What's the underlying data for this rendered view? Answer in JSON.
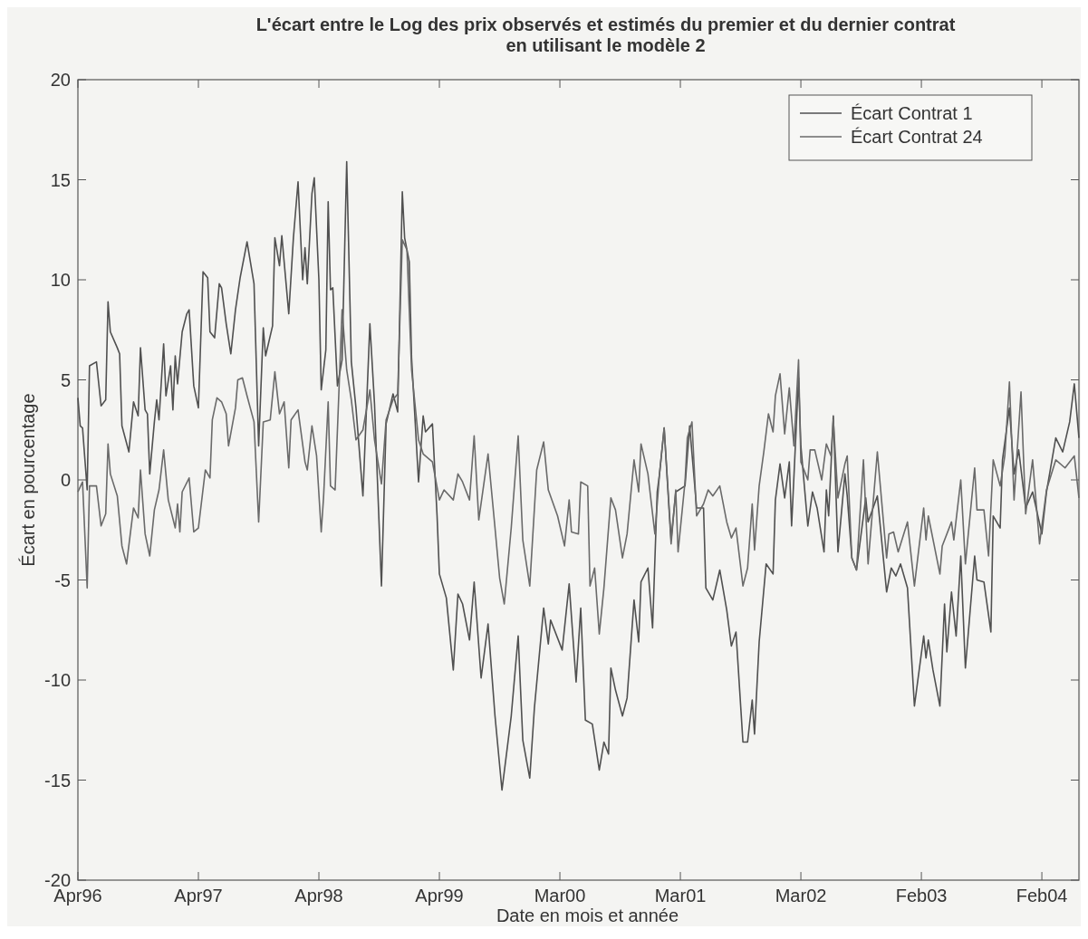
{
  "chart_data": {
    "type": "line",
    "title": "L'écart entre le Log des prix observés et estimés du premier et du dernier contrat\nen utilisant le modèle 2",
    "xlabel": "Date en mois et année",
    "ylabel": "Écart en pourcentage",
    "categories": [
      "Apr96",
      null,
      null,
      null,
      null,
      null,
      null,
      null,
      null,
      null,
      null,
      null,
      null,
      null,
      null,
      null,
      null,
      null,
      null,
      null,
      null,
      null,
      null,
      null,
      null,
      null,
      null,
      null,
      null,
      null,
      null,
      null,
      null,
      null,
      null,
      null,
      null,
      null,
      null,
      null,
      null,
      null,
      null,
      null,
      null,
      null,
      null,
      null,
      null,
      null,
      null,
      null,
      "Apr97",
      null,
      null,
      null,
      null,
      null,
      null,
      null,
      null,
      null,
      null,
      null,
      null,
      null,
      null,
      null,
      null,
      null,
      null,
      null,
      null,
      null,
      null,
      null,
      null,
      null,
      null,
      null,
      null,
      null,
      null,
      null,
      null,
      null,
      null,
      null,
      null,
      null,
      null,
      null,
      null,
      null,
      null,
      null,
      null,
      null,
      null,
      null,
      null,
      null,
      null,
      null,
      "Apr98",
      null,
      null,
      null,
      null,
      null,
      null,
      null,
      null,
      null,
      null,
      null,
      null,
      null,
      null,
      null,
      null,
      null,
      null,
      null,
      null,
      null,
      null,
      null,
      null,
      null,
      null,
      null,
      null,
      null,
      null,
      null,
      null,
      null,
      null,
      null,
      null,
      null,
      null,
      null,
      null,
      null,
      null,
      null,
      null,
      null,
      null,
      null,
      null,
      null,
      null,
      null,
      "Apr99",
      null,
      null,
      null,
      null,
      null,
      null,
      null,
      null,
      null,
      null,
      null,
      null,
      null,
      null,
      null,
      null,
      null,
      null,
      null,
      null,
      null,
      null,
      null,
      null,
      null,
      null,
      null,
      null,
      null,
      null,
      null,
      null,
      null,
      null,
      null,
      null,
      null,
      null,
      null,
      null,
      null,
      null,
      null,
      null,
      null,
      null,
      null,
      null,
      null,
      null,
      null,
      "Mar00",
      null,
      null,
      null,
      null,
      null,
      null,
      null,
      null,
      null,
      null,
      null,
      null,
      null,
      null,
      null,
      null,
      null,
      null,
      null,
      null,
      null,
      null,
      null,
      null,
      null,
      null,
      null,
      null,
      null,
      null,
      null,
      null,
      null,
      null,
      null,
      null,
      null,
      null,
      null,
      null,
      null,
      null,
      null,
      null,
      null,
      null,
      null,
      null,
      null,
      null,
      null,
      "Mar01",
      null,
      null,
      null,
      null,
      null,
      null,
      null,
      null,
      null,
      null,
      null,
      null,
      null,
      null,
      null,
      null,
      null,
      null,
      null,
      null,
      null,
      null,
      null,
      null,
      null,
      null,
      null,
      null,
      null,
      null,
      null,
      null,
      null,
      null,
      null,
      null,
      null,
      null,
      null,
      null,
      null,
      null,
      null,
      null,
      null,
      null,
      null,
      null,
      null,
      null,
      null,
      "Mar02",
      null,
      null,
      null,
      null,
      null,
      null,
      null,
      null,
      null,
      null,
      null,
      null,
      null,
      null,
      null,
      null,
      null,
      null,
      null,
      null,
      null,
      null,
      null,
      null,
      null,
      null,
      null,
      null,
      null,
      null,
      null,
      null,
      null,
      null,
      null,
      null,
      null,
      null,
      null,
      null,
      null,
      null,
      null,
      null,
      null,
      null,
      null,
      null,
      null,
      null,
      null,
      "Feb03",
      null,
      null,
      null,
      null,
      null,
      null,
      null,
      null,
      null,
      null,
      null,
      null,
      null,
      null,
      null,
      null,
      null,
      null,
      null,
      null,
      null,
      null,
      null,
      null,
      null,
      null,
      null,
      null,
      null,
      null,
      null,
      null,
      null,
      null,
      null,
      null,
      null,
      null,
      null,
      null,
      null,
      null,
      null,
      null,
      null,
      null,
      null,
      null,
      null,
      null,
      null,
      "Feb04",
      null,
      null,
      null,
      null,
      null,
      null,
      null,
      null,
      null,
      null,
      null,
      null,
      null,
      null,
      null,
      null
    ],
    "ylim": [
      -20,
      20
    ],
    "yticks": [
      -20,
      -15,
      -10,
      -5,
      0,
      5,
      10,
      15,
      20
    ],
    "grid": false,
    "legend": "top right",
    "marker": "none",
    "line_style": "solid",
    "series": [
      {
        "name": "Écart Contrat 1",
        "color": "#505050",
        "values": [
          4.1,
          2.7,
          2.6,
          null,
          -0.5,
          5.7,
          null,
          null,
          5.9,
          null,
          3.7,
          null,
          4.0,
          8.9,
          7.4,
          null,
          null,
          6.6,
          6.3,
          2.7,
          null,
          null,
          1.4,
          null,
          3.9,
          null,
          3.2,
          6.6,
          null,
          3.5,
          3.3,
          0.3,
          null,
          2.9,
          4.0,
          3.0,
          null,
          6.8,
          4.2,
          null,
          5.7,
          3.5,
          6.2,
          4.8,
          null,
          7.4,
          null,
          8.3,
          8.5,
          null,
          4.7,
          null,
          3.6,
          null,
          10.4,
          null,
          10.1,
          7.4,
          null,
          7.1,
          null,
          9.8,
          9.6,
          null,
          7.8,
          null,
          6.3,
          null,
          8.5,
          null,
          10.1,
          null,
          null,
          11.9,
          null,
          null,
          9.8,
          null,
          1.7,
          null,
          7.6,
          6.2,
          null,
          null,
          7.7,
          12.1,
          null,
          10.7,
          12.2,
          null,
          null,
          8.3,
          null,
          12.1,
          null,
          14.9,
          null,
          10.0,
          11.6,
          9.8,
          null,
          14.3,
          15.1,
          null,
          10.0,
          4.5,
          null,
          6.5,
          13.9,
          9.5,
          9.6,
          null,
          4.7,
          null,
          6.0,
          null,
          15.9,
          null,
          5.9,
          null,
          3.6,
          null,
          null,
          -0.8,
          null,
          null,
          7.8,
          null,
          3.8,
          null,
          null,
          -5.3,
          null,
          2.8,
          null,
          null,
          4.3,
          null,
          3.4,
          null,
          14.4,
          12.1,
          null,
          10.9,
          6.1,
          null,
          null,
          -0.1,
          null,
          3.2,
          2.4,
          null,
          null,
          2.8,
          null,
          -1.8,
          -4.7,
          null,
          null,
          -5.9,
          null,
          null,
          -9.5,
          null,
          -5.7,
          null,
          -6.2,
          null,
          null,
          -8.0,
          null,
          -5.1,
          null,
          null,
          -9.9,
          null,
          null,
          -7.2,
          null,
          null,
          -11.8,
          null,
          null,
          -15.5,
          null,
          null,
          null,
          -11.8,
          null,
          null,
          -7.8,
          null,
          -13.0,
          null,
          null,
          -14.9,
          null,
          -11.4,
          null,
          null,
          null,
          -6.4,
          null,
          -8.2,
          -7.0,
          null,
          null,
          null,
          null,
          -8.5,
          null,
          null,
          -5.2,
          null,
          null,
          -10.1,
          null,
          -6.4,
          null,
          -12.0,
          null,
          null,
          -12.2,
          null,
          null,
          -14.5,
          null,
          -13.1,
          null,
          -13.7,
          -9.4,
          null,
          -10.5,
          null,
          null,
          -11.8,
          null,
          -10.9,
          null,
          null,
          -6.0,
          null,
          -8.1,
          -5.1,
          null,
          null,
          -4.4,
          null,
          -7.4,
          null,
          -0.6,
          0.3,
          null,
          2.6,
          null,
          null,
          -3.0,
          null,
          -0.6,
          null,
          null,
          null,
          -0.3,
          null,
          2.7,
          null,
          null,
          -1.4,
          null,
          null,
          -1.4,
          -5.4,
          null,
          null,
          -6.0,
          null,
          null,
          -4.5,
          null,
          null,
          -6.5,
          null,
          -8.3,
          null,
          -7.6,
          null,
          null,
          -13.1,
          null,
          -13.1,
          null,
          -11.0,
          -12.7,
          null,
          -8.1,
          null,
          null,
          -4.2,
          null,
          null,
          -4.7,
          -1.0,
          null,
          0.8,
          null,
          -0.9,
          null,
          0.9,
          -2.3,
          null,
          null,
          5.1,
          1.7,
          null,
          null,
          -2.3,
          null,
          -0.6,
          null,
          -1.4,
          null,
          null,
          -3.6,
          -0.5,
          -1.8,
          null,
          3.2,
          null,
          -3.6,
          null,
          null,
          0.3,
          -0.8,
          null,
          -3.9,
          null,
          -4.5,
          null,
          null,
          null,
          -0.9,
          -2.1,
          null,
          null,
          null,
          -0.8,
          null,
          null,
          null,
          -5.6,
          null,
          -4.4,
          null,
          -4.8,
          null,
          -4.2,
          null,
          null,
          -5.4,
          null,
          null,
          -11.3,
          null,
          null,
          null,
          -7.8,
          -8.9,
          -8.0,
          null,
          -9.5,
          null,
          null,
          -11.3,
          null,
          -6.2,
          -8.6,
          null,
          -5.6,
          null,
          -7.8,
          null,
          -3.8,
          null,
          -9.4,
          null,
          null,
          null,
          -3.8,
          -5.0,
          null,
          null,
          -5.1,
          null,
          null,
          -7.6,
          -1.8,
          null,
          null,
          -2.4,
          1.0,
          null,
          null,
          3.6,
          null,
          0.3,
          null,
          1.5,
          null,
          null,
          -1.4,
          null,
          null,
          -0.6,
          null,
          null,
          null,
          -2.7,
          null,
          -0.6,
          null,
          null,
          null,
          2.1,
          null,
          null,
          1.4,
          null,
          null,
          2.9,
          null,
          4.8,
          null,
          2.1
        ]
      },
      {
        "name": "Écart Contrat 24",
        "color": "#6a6a6a",
        "values": [
          -0.6,
          null,
          -0.1,
          null,
          -5.4,
          -0.3,
          null,
          null,
          -0.3,
          null,
          -2.3,
          null,
          -1.7,
          1.8,
          0.3,
          null,
          null,
          -0.8,
          null,
          -3.3,
          null,
          -4.2,
          null,
          null,
          -1.4,
          null,
          -1.9,
          0.5,
          null,
          -2.7,
          null,
          -3.8,
          null,
          -1.5,
          null,
          -0.5,
          null,
          1.5,
          null,
          -1.0,
          null,
          null,
          -2.4,
          -1.2,
          -2.6,
          -0.6,
          null,
          null,
          0.1,
          null,
          -2.6,
          null,
          -2.4,
          null,
          null,
          0.5,
          null,
          0.1,
          3.0,
          null,
          4.1,
          null,
          3.9,
          null,
          3.3,
          1.7,
          null,
          null,
          3.6,
          5.0,
          null,
          5.1,
          null,
          4.2,
          null,
          null,
          2.9,
          null,
          -2.1,
          null,
          2.9,
          null,
          null,
          3.0,
          null,
          5.4,
          null,
          3.3,
          null,
          3.9,
          null,
          0.6,
          3.0,
          null,
          null,
          3.5,
          null,
          null,
          0.9,
          0.5,
          null,
          2.7,
          null,
          1.2,
          null,
          -2.6,
          -0.9,
          null,
          3.9,
          -0.3,
          null,
          -0.5,
          null,
          5.5,
          8.5,
          null,
          5.5,
          null,
          4.0,
          null,
          2.0,
          null,
          null,
          2.5,
          null,
          null,
          4.5,
          null,
          2.0,
          null,
          null,
          -0.2,
          null,
          3.0,
          null,
          null,
          4.0,
          null,
          4.3,
          null,
          12.0,
          null,
          11.5,
          null,
          5.5,
          null,
          null,
          2.0,
          null,
          1.3,
          null,
          null,
          null,
          0.9,
          null,
          null,
          -1.0,
          null,
          -0.5,
          null,
          null,
          null,
          -1.0,
          null,
          0.3,
          null,
          -0.1,
          null,
          null,
          -1.0,
          null,
          2.2,
          null,
          -2.0,
          null,
          null,
          null,
          1.3,
          null,
          null,
          -2.4,
          null,
          -4.9,
          null,
          -6.2,
          null,
          null,
          -2.4,
          null,
          null,
          2.2,
          null,
          -3.0,
          null,
          null,
          -5.3,
          null,
          null,
          0.5,
          null,
          null,
          1.9,
          null,
          -0.5,
          null,
          null,
          null,
          -1.8,
          null,
          null,
          -3.3,
          null,
          -1.0,
          -2.6,
          null,
          null,
          -2.7,
          -0.1,
          null,
          null,
          -0.3,
          -5.3,
          null,
          -4.4,
          null,
          -7.7,
          null,
          -5.4,
          null,
          null,
          -0.9,
          null,
          -1.5,
          null,
          null,
          -3.9,
          null,
          -2.7,
          null,
          null,
          1.0,
          null,
          -0.6,
          1.8,
          null,
          null,
          0.3,
          null,
          null,
          -2.7,
          null,
          0.3,
          null,
          2.6,
          null,
          null,
          -3.2,
          null,
          -0.5,
          -3.6,
          null,
          null,
          -0.1,
          2.1,
          null,
          2.9,
          null,
          -1.8,
          null,
          null,
          -1.2,
          null,
          -0.5,
          null,
          -0.8,
          null,
          null,
          -0.3,
          null,
          null,
          -2.1,
          null,
          -2.9,
          null,
          -2.4,
          null,
          null,
          -5.3,
          null,
          -4.4,
          null,
          -1.2,
          -3.5,
          null,
          -0.3,
          null,
          1.4,
          null,
          3.3,
          null,
          2.4,
          4.2,
          null,
          5.3,
          null,
          2.3,
          null,
          4.6,
          null,
          1.7,
          null,
          6.0,
          0.9,
          null,
          null,
          0.0,
          1.5,
          null,
          1.5,
          null,
          null,
          0.0,
          null,
          1.8,
          null,
          1.2,
          3.0,
          null,
          -0.9,
          null,
          null,
          0.8,
          1.2,
          null,
          -3.9,
          null,
          -4.5,
          null,
          null,
          1.0,
          null,
          -4.2,
          null,
          null,
          null,
          1.4,
          null,
          null,
          null,
          -3.9,
          -2.7,
          null,
          -2.6,
          null,
          -3.6,
          null,
          null,
          null,
          -2.1,
          null,
          null,
          -5.3,
          null,
          null,
          null,
          -1.4,
          -3.0,
          -1.8,
          null,
          null,
          null,
          null,
          -4.7,
          -3.3,
          null,
          null,
          null,
          -2.1,
          -3.0,
          null,
          null,
          0.0,
          null,
          -4.2,
          null,
          null,
          null,
          0.6,
          -1.5,
          null,
          null,
          -1.5,
          null,
          -3.8,
          null,
          1.0,
          null,
          null,
          -0.3,
          null,
          1.2,
          null,
          4.9,
          null,
          -1.0,
          null,
          null,
          4.4,
          null,
          -1.7,
          null,
          null,
          1.0,
          null,
          null,
          -3.2,
          null,
          null,
          -0.5,
          null,
          null,
          null,
          1.0,
          null,
          null,
          null,
          0.6,
          null,
          null,
          null,
          1.2,
          null,
          -0.9
        ]
      }
    ]
  }
}
